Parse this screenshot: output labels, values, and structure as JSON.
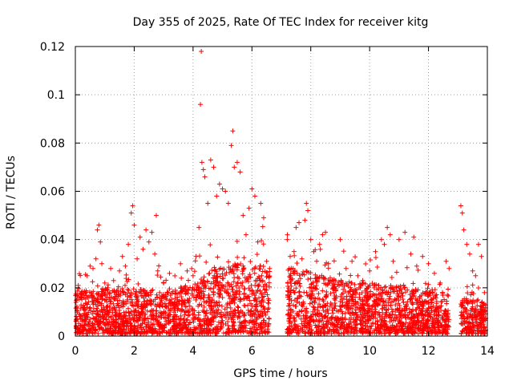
{
  "chart_data": {
    "type": "scatter",
    "title": "Day 355 of 2025, Rate Of TEC Index for receiver kitg",
    "xlabel": "GPS time / hours",
    "ylabel": "ROTI / TECUs",
    "xlim": [
      0,
      14
    ],
    "ylim": [
      0,
      0.12
    ],
    "x_ticks": [
      0,
      2,
      4,
      6,
      8,
      10,
      12,
      14
    ],
    "x_tick_labels": [
      "0",
      "2",
      "4",
      "6",
      "8",
      "10",
      "12",
      "14"
    ],
    "y_ticks": [
      0,
      0.02,
      0.04,
      0.06,
      0.08,
      0.1,
      0.12
    ],
    "y_tick_labels": [
      "0",
      "0.02",
      "0.04",
      "0.06",
      "0.08",
      "0.1",
      "0.12"
    ],
    "grid": true,
    "marker": "+",
    "color": "#ff0000",
    "series": [
      {
        "name": "ROTI",
        "points": [
          [
            0.05,
            0.012
          ],
          [
            0.1,
            0.021
          ],
          [
            0.2,
            0.018
          ],
          [
            0.3,
            0.016
          ],
          [
            0.4,
            0.025
          ],
          [
            0.5,
            0.029
          ],
          [
            0.6,
            0.028
          ],
          [
            0.7,
            0.032
          ],
          [
            0.75,
            0.044
          ],
          [
            0.8,
            0.046
          ],
          [
            0.85,
            0.039
          ],
          [
            0.9,
            0.03
          ],
          [
            1.0,
            0.022
          ],
          [
            1.1,
            0.02
          ],
          [
            1.2,
            0.028
          ],
          [
            1.3,
            0.023
          ],
          [
            1.4,
            0.018
          ],
          [
            1.5,
            0.027
          ],
          [
            1.6,
            0.033
          ],
          [
            1.7,
            0.029
          ],
          [
            1.8,
            0.038
          ],
          [
            1.9,
            0.051
          ],
          [
            1.95,
            0.054
          ],
          [
            2.0,
            0.046
          ],
          [
            2.1,
            0.032
          ],
          [
            2.2,
            0.041
          ],
          [
            2.3,
            0.036
          ],
          [
            2.4,
            0.044
          ],
          [
            2.5,
            0.039
          ],
          [
            2.6,
            0.043
          ],
          [
            2.7,
            0.034
          ],
          [
            2.75,
            0.05
          ],
          [
            2.8,
            0.027
          ],
          [
            3.0,
            0.022
          ],
          [
            3.2,
            0.026
          ],
          [
            3.4,
            0.019
          ],
          [
            3.6,
            0.024
          ],
          [
            3.8,
            0.027
          ],
          [
            4.0,
            0.025
          ],
          [
            4.1,
            0.033
          ],
          [
            4.2,
            0.045
          ],
          [
            4.25,
            0.096
          ],
          [
            4.28,
            0.118
          ],
          [
            4.3,
            0.072
          ],
          [
            4.35,
            0.069
          ],
          [
            4.4,
            0.066
          ],
          [
            4.5,
            0.055
          ],
          [
            4.6,
            0.073
          ],
          [
            4.7,
            0.07
          ],
          [
            4.8,
            0.058
          ],
          [
            4.9,
            0.063
          ],
          [
            5.0,
            0.061
          ],
          [
            5.1,
            0.06
          ],
          [
            5.2,
            0.055
          ],
          [
            5.3,
            0.079
          ],
          [
            5.35,
            0.085
          ],
          [
            5.4,
            0.07
          ],
          [
            5.5,
            0.072
          ],
          [
            5.6,
            0.068
          ],
          [
            5.7,
            0.05
          ],
          [
            5.8,
            0.042
          ],
          [
            5.9,
            0.053
          ],
          [
            6.0,
            0.061
          ],
          [
            6.1,
            0.058
          ],
          [
            6.2,
            0.039
          ],
          [
            6.3,
            0.055
          ],
          [
            6.4,
            0.049
          ],
          [
            6.5,
            0.031
          ],
          [
            6.6,
            0.028
          ],
          [
            7.2,
            0.04
          ],
          [
            7.3,
            0.033
          ],
          [
            7.4,
            0.028
          ],
          [
            7.5,
            0.045
          ],
          [
            7.6,
            0.047
          ],
          [
            7.7,
            0.032
          ],
          [
            7.8,
            0.048
          ],
          [
            7.85,
            0.055
          ],
          [
            7.9,
            0.052
          ],
          [
            8.0,
            0.04
          ],
          [
            8.1,
            0.035
          ],
          [
            8.2,
            0.031
          ],
          [
            8.3,
            0.038
          ],
          [
            8.4,
            0.042
          ],
          [
            8.5,
            0.043
          ],
          [
            8.6,
            0.03
          ],
          [
            9.0,
            0.04
          ],
          [
            9.2,
            0.028
          ],
          [
            9.4,
            0.031
          ],
          [
            9.6,
            0.025
          ],
          [
            9.8,
            0.022
          ],
          [
            10.0,
            0.027
          ],
          [
            10.2,
            0.035
          ],
          [
            10.4,
            0.04
          ],
          [
            10.5,
            0.038
          ],
          [
            10.6,
            0.045
          ],
          [
            10.7,
            0.042
          ],
          [
            10.8,
            0.031
          ],
          [
            11.0,
            0.04
          ],
          [
            11.2,
            0.043
          ],
          [
            11.4,
            0.034
          ],
          [
            11.5,
            0.041
          ],
          [
            11.6,
            0.029
          ],
          [
            11.8,
            0.033
          ],
          [
            12.0,
            0.03
          ],
          [
            12.2,
            0.026
          ],
          [
            12.4,
            0.022
          ],
          [
            12.6,
            0.031
          ],
          [
            12.7,
            0.028
          ],
          [
            13.1,
            0.054
          ],
          [
            13.15,
            0.051
          ],
          [
            13.2,
            0.044
          ],
          [
            13.3,
            0.038
          ],
          [
            13.4,
            0.034
          ],
          [
            13.5,
            0.027
          ],
          [
            13.6,
            0.025
          ],
          [
            13.7,
            0.038
          ],
          [
            13.8,
            0.033
          ],
          [
            13.9,
            0.018
          ]
        ],
        "band": {
          "segments": [
            [
              0.0,
              6.6
            ],
            [
              7.2,
              12.7
            ],
            [
              13.1,
              13.95
            ]
          ],
          "baseline_min": 0.001,
          "typical_max": 0.018,
          "hourly_envelope": [
            [
              0,
              0.018
            ],
            [
              1,
              0.02
            ],
            [
              2,
              0.02
            ],
            [
              3,
              0.018
            ],
            [
              4,
              0.022
            ],
            [
              5,
              0.03
            ],
            [
              6,
              0.03
            ],
            [
              7.5,
              0.028
            ],
            [
              8.5,
              0.025
            ],
            [
              9.5,
              0.022
            ],
            [
              10.5,
              0.022
            ],
            [
              11.5,
              0.02
            ],
            [
              12.5,
              0.018
            ],
            [
              13.5,
              0.015
            ]
          ]
        }
      }
    ]
  }
}
